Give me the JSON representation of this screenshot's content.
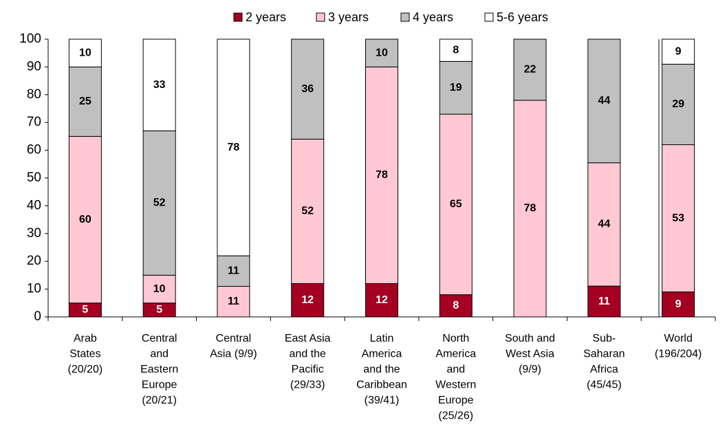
{
  "chart_data": {
    "type": "stacked_bar",
    "categories": [
      [
        "Arab",
        "States",
        "(20/20)"
      ],
      [
        "Central",
        "and",
        "Eastern",
        "Europe",
        "(20/21)"
      ],
      [
        "Central",
        "Asia (9/9)"
      ],
      [
        "East Asia",
        "and the",
        "Pacific",
        "(29/33)"
      ],
      [
        "Latin",
        "America",
        "and the",
        "Caribbean",
        "(39/41)"
      ],
      [
        "North",
        "America",
        "and",
        "Western",
        "Europe",
        "(25/26)"
      ],
      [
        "South and",
        "West Asia",
        "(9/9)"
      ],
      [
        "Sub-",
        "Saharan",
        "Africa",
        "(45/45)"
      ],
      [
        "World",
        "(196/204)"
      ]
    ],
    "series": [
      {
        "name": "2 years",
        "color": "#a50021",
        "label_color": "#ffffff",
        "values": [
          5,
          5,
          null,
          12,
          12,
          8,
          null,
          11.1,
          9
        ],
        "value_labels": [
          "5",
          "5",
          null,
          "12",
          "12",
          "8",
          null,
          "11",
          "9"
        ]
      },
      {
        "name": "3 years",
        "color": "#ffc8d2",
        "label_color": "#000000",
        "values": [
          60,
          10,
          11,
          52,
          78,
          65,
          78,
          44.4,
          53
        ],
        "value_labels": [
          "60",
          "10",
          "11",
          "52",
          "78",
          "65",
          "78",
          "44",
          "53"
        ]
      },
      {
        "name": "4 years",
        "color": "#c0c0c0",
        "label_color": "#000000",
        "values": [
          25,
          52,
          11,
          36,
          10,
          19,
          22,
          44.5,
          29
        ],
        "value_labels": [
          "25",
          "52",
          "11",
          "36",
          "10",
          "19",
          "22",
          "44",
          "29"
        ]
      },
      {
        "name": "5-6 years",
        "color": "#ffffff",
        "label_color": "#000000",
        "values": [
          10,
          33,
          78,
          null,
          null,
          8,
          null,
          null,
          9
        ],
        "value_labels": [
          "10",
          "33",
          "78",
          null,
          null,
          "8",
          null,
          null,
          "9"
        ]
      }
    ],
    "ylim": [
      0,
      100
    ],
    "yticks": [
      0,
      10,
      20,
      30,
      40,
      50,
      60,
      70,
      80,
      90,
      100
    ],
    "legend": "top"
  }
}
